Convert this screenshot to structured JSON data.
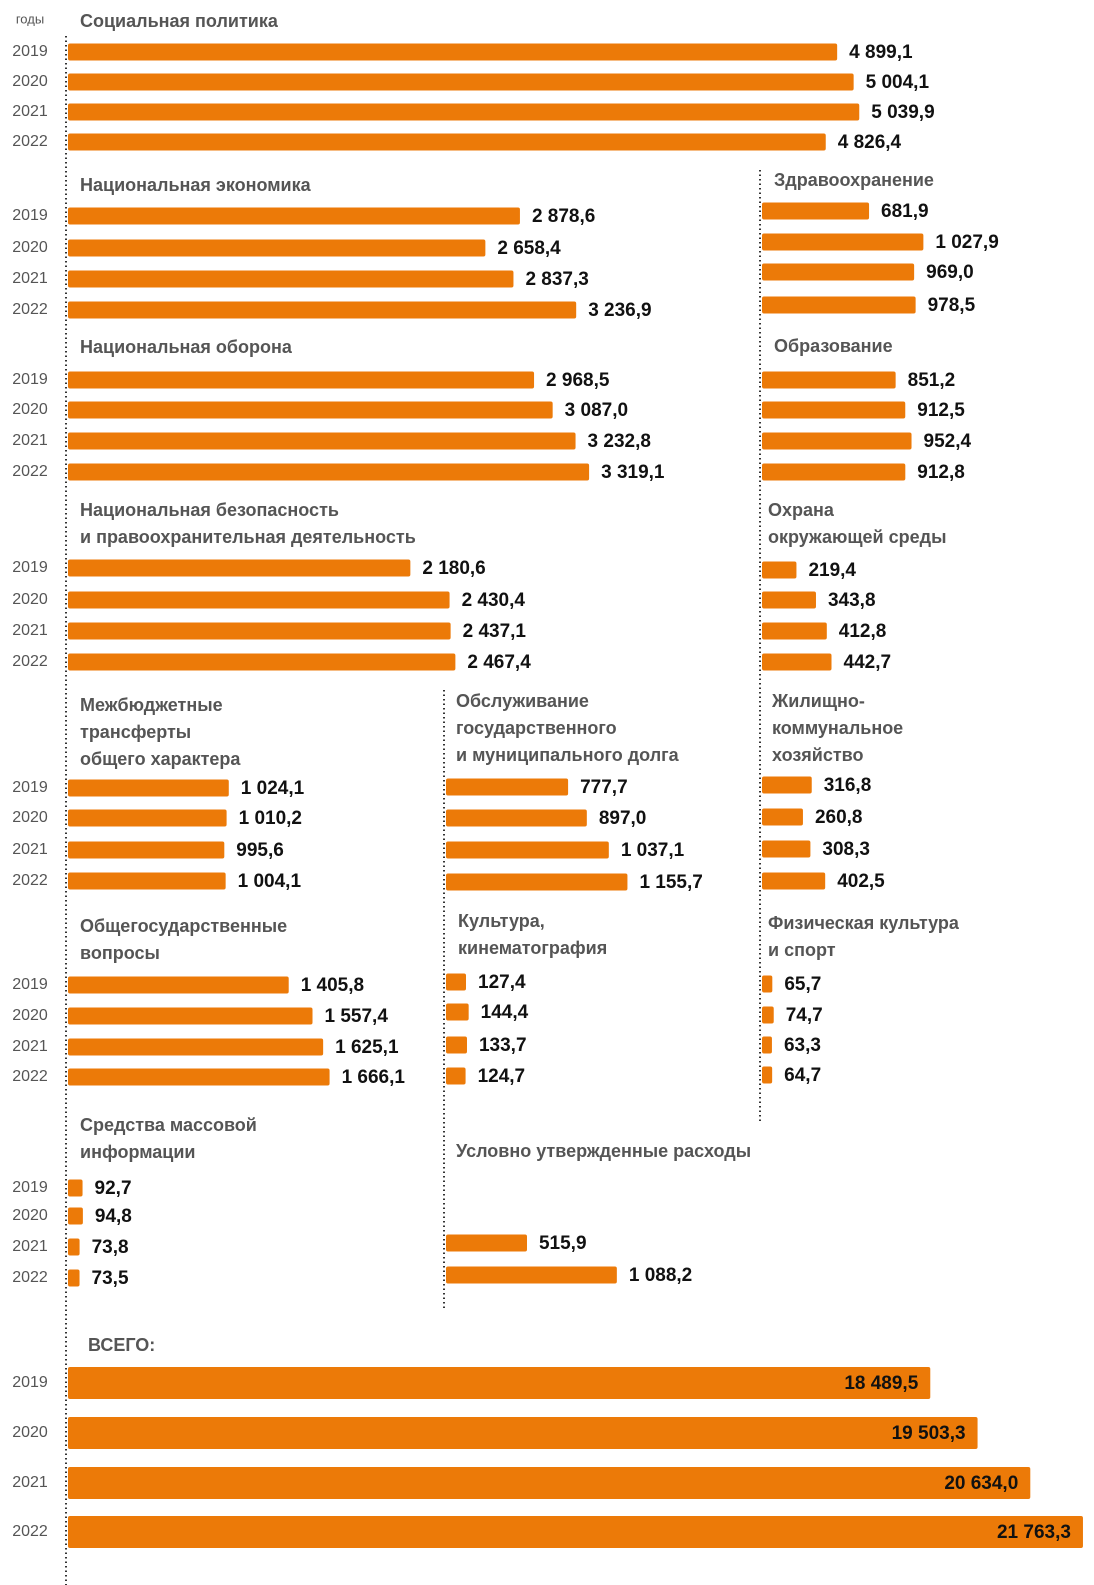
{
  "axis_label": "годы",
  "chart_data": [
    {
      "type": "bar",
      "orientation": "horizontal",
      "title": [
        "Социальная политика"
      ],
      "categories": [
        "2019",
        "2020",
        "2021",
        "2022"
      ],
      "values": [
        4899.1,
        5004.1,
        5039.9,
        4826.4
      ],
      "value_labels": [
        "4 899,1",
        "5 004,1",
        "5 039,9",
        "4 826,4"
      ],
      "xlim": [
        0,
        5000
      ],
      "color": "#ec7a08"
    },
    {
      "type": "bar",
      "orientation": "horizontal",
      "title": [
        "Национальная экономика"
      ],
      "categories": [
        "2019",
        "2020",
        "2021",
        "2022"
      ],
      "values": [
        2878.6,
        2658.4,
        2837.3,
        3236.9
      ],
      "value_labels": [
        "2 878,6",
        "2 658,4",
        "2 837,3",
        "3 236,9"
      ],
      "xlim": [
        0,
        5000
      ],
      "color": "#ec7a08"
    },
    {
      "type": "bar",
      "orientation": "horizontal",
      "title": [
        "Здравоохранение"
      ],
      "values": [
        681.9,
        1027.9,
        969.0,
        978.5
      ],
      "value_labels": [
        "681,9",
        "1 027,9",
        "969,0",
        "978,5"
      ],
      "xlim": [
        0,
        5000
      ],
      "color": "#ec7a08"
    },
    {
      "type": "bar",
      "orientation": "horizontal",
      "title": [
        "Национальная оборона"
      ],
      "categories": [
        "2019",
        "2020",
        "2021",
        "2022"
      ],
      "values": [
        2968.5,
        3087.0,
        3232.8,
        3319.1
      ],
      "value_labels": [
        "2 968,5",
        "3 087,0",
        "3 232,8",
        "3 319,1"
      ],
      "xlim": [
        0,
        5000
      ],
      "color": "#ec7a08"
    },
    {
      "type": "bar",
      "orientation": "horizontal",
      "title": [
        "Образование"
      ],
      "values": [
        851.2,
        912.5,
        952.4,
        912.8
      ],
      "value_labels": [
        "851,2",
        "912,5",
        "952,4",
        "912,8"
      ],
      "xlim": [
        0,
        5000
      ],
      "color": "#ec7a08"
    },
    {
      "type": "bar",
      "orientation": "horizontal",
      "title": [
        "Национальная безопасность",
        "и правоохранительная деятельность"
      ],
      "categories": [
        "2019",
        "2020",
        "2021",
        "2022"
      ],
      "values": [
        2180.6,
        2430.4,
        2437.1,
        2467.4
      ],
      "value_labels": [
        "2 180,6",
        "2 430,4",
        "2 437,1",
        "2 467,4"
      ],
      "xlim": [
        0,
        5000
      ],
      "color": "#ec7a08"
    },
    {
      "type": "bar",
      "orientation": "horizontal",
      "title": [
        "Охрана",
        "окружающей среды"
      ],
      "values": [
        219.4,
        343.8,
        412.8,
        442.7
      ],
      "value_labels": [
        "219,4",
        "343,8",
        "412,8",
        "442,7"
      ],
      "xlim": [
        0,
        5000
      ],
      "color": "#ec7a08"
    },
    {
      "type": "bar",
      "orientation": "horizontal",
      "title": [
        "Межбюджетные",
        "трансферты",
        "общего характера"
      ],
      "categories": [
        "2019",
        "2020",
        "2021",
        "2022"
      ],
      "values": [
        1024.1,
        1010.2,
        995.6,
        1004.1
      ],
      "value_labels": [
        "1 024,1",
        "1 010,2",
        "995,6",
        "1 004,1"
      ],
      "xlim": [
        0,
        5000
      ],
      "color": "#ec7a08"
    },
    {
      "type": "bar",
      "orientation": "horizontal",
      "title": [
        "Обслуживание",
        "государственного",
        "и муниципального долга"
      ],
      "values": [
        777.7,
        897.0,
        1037.1,
        1155.7
      ],
      "value_labels": [
        "777,7",
        "897,0",
        "1 037,1",
        "1 155,7"
      ],
      "xlim": [
        0,
        5000
      ],
      "color": "#ec7a08"
    },
    {
      "type": "bar",
      "orientation": "horizontal",
      "title": [
        "Жилищно-",
        "коммунальное",
        "хозяйство"
      ],
      "values": [
        316.8,
        260.8,
        308.3,
        402.5
      ],
      "value_labels": [
        "316,8",
        "260,8",
        "308,3",
        "402,5"
      ],
      "xlim": [
        0,
        5000
      ],
      "color": "#ec7a08"
    },
    {
      "type": "bar",
      "orientation": "horizontal",
      "title": [
        "Общегосударственные",
        "вопросы"
      ],
      "categories": [
        "2019",
        "2020",
        "2021",
        "2022"
      ],
      "values": [
        1405.8,
        1557.4,
        1625.1,
        1666.1
      ],
      "value_labels": [
        "1 405,8",
        "1 557,4",
        "1 625,1",
        "1 666,1"
      ],
      "xlim": [
        0,
        5000
      ],
      "color": "#ec7a08"
    },
    {
      "type": "bar",
      "orientation": "horizontal",
      "title": [
        "Культура,",
        "кинематография"
      ],
      "values": [
        127.4,
        144.4,
        133.7,
        124.7
      ],
      "value_labels": [
        "127,4",
        "144,4",
        "133,7",
        "124,7"
      ],
      "xlim": [
        0,
        5000
      ],
      "color": "#ec7a08"
    },
    {
      "type": "bar",
      "orientation": "horizontal",
      "title": [
        "Физическая культура",
        "и спорт"
      ],
      "values": [
        65.7,
        74.7,
        63.3,
        64.7
      ],
      "value_labels": [
        "65,7",
        "74,7",
        "63,3",
        "64,7"
      ],
      "xlim": [
        0,
        5000
      ],
      "color": "#ec7a08"
    },
    {
      "type": "bar",
      "orientation": "horizontal",
      "title": [
        "Средства массовой",
        "информации"
      ],
      "categories": [
        "2019",
        "2020",
        "2021",
        "2022"
      ],
      "values": [
        92.7,
        94.8,
        73.8,
        73.5
      ],
      "value_labels": [
        "92,7",
        "94,8",
        "73,8",
        "73,5"
      ],
      "xlim": [
        0,
        5000
      ],
      "color": "#ec7a08"
    },
    {
      "type": "bar",
      "orientation": "horizontal",
      "title": [
        "Условно утвержденные расходы"
      ],
      "values": [
        null,
        null,
        515.9,
        1088.2
      ],
      "value_labels": [
        null,
        null,
        "515,9",
        "1 088,2"
      ],
      "xlim": [
        0,
        5000
      ],
      "color": "#ec7a08"
    },
    {
      "type": "bar",
      "orientation": "horizontal",
      "title": [
        "ВСЕГО:"
      ],
      "categories": [
        "2019",
        "2020",
        "2021",
        "2022"
      ],
      "values": [
        18489.5,
        19503.3,
        20634.0,
        21763.3
      ],
      "value_labels": [
        "18 489,5",
        "19 503,3",
        "20 634,0",
        "21 763,3"
      ],
      "xlim": [
        0,
        22000
      ],
      "color": "#ec7a08"
    }
  ]
}
